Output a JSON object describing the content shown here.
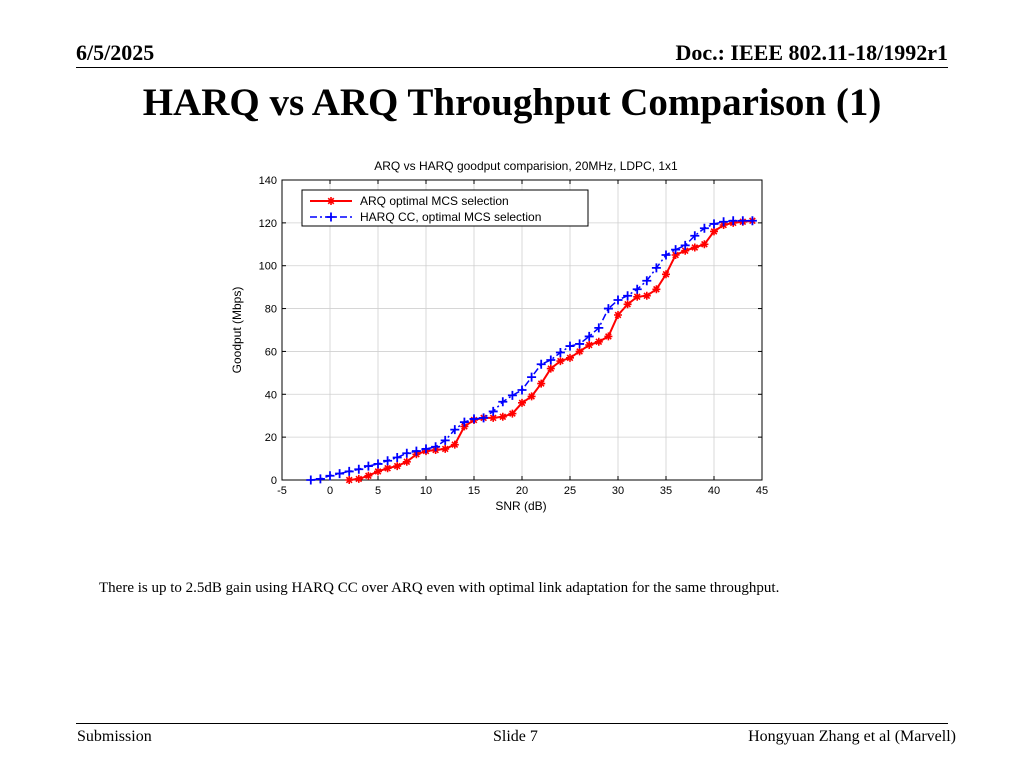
{
  "header": {
    "date": "6/5/2025",
    "doc_id": "Doc.: IEEE 802.11-18/1992r1"
  },
  "slide_title": "HARQ vs ARQ Throughput Comparison (1)",
  "caption": "There is up to 2.5dB gain using HARQ CC over ARQ even with optimal link adaptation for the same throughput.",
  "footer": {
    "left": "Submission",
    "center": "Slide 7",
    "right": "Hongyuan Zhang et al (Marvell)"
  },
  "colors": {
    "arq": "#ff0000",
    "harq": "#0000ff",
    "grid": "#d0d0d0"
  },
  "chart_data": {
    "type": "line",
    "title": "ARQ vs HARQ goodput comparision, 20MHz, LDPC, 1x1",
    "xlabel": "SNR (dB)",
    "ylabel": "Goodput (Mbps)",
    "xlim": [
      -5,
      45
    ],
    "ylim": [
      0,
      140
    ],
    "xticks": [
      -5,
      0,
      5,
      10,
      15,
      20,
      25,
      30,
      35,
      40,
      45
    ],
    "yticks": [
      0,
      20,
      40,
      60,
      80,
      100,
      120,
      140
    ],
    "grid": true,
    "legend": "top-left",
    "series": [
      {
        "name": "ARQ optimal MCS selection",
        "style": "solid",
        "marker": "*",
        "x": [
          2,
          3,
          4,
          5,
          6,
          7,
          8,
          9,
          10,
          11,
          12,
          13,
          14,
          15,
          16,
          17,
          18,
          19,
          20,
          21,
          22,
          23,
          24,
          25,
          26,
          27,
          28,
          29,
          30,
          31,
          32,
          33,
          34,
          35,
          36,
          37,
          38,
          39,
          40,
          41,
          42,
          43,
          44
        ],
        "y": [
          0,
          0.5,
          2,
          4,
          5.5,
          6.5,
          8.5,
          12,
          13.5,
          14,
          14.5,
          16.5,
          25,
          28,
          29,
          29,
          29.5,
          31,
          36,
          39,
          45,
          52,
          55.5,
          57,
          60,
          63,
          64.5,
          67,
          77,
          82,
          85.5,
          86,
          89,
          96,
          105,
          107,
          108.5,
          110,
          116,
          119,
          120,
          120.5,
          121
        ]
      },
      {
        "name": "HARQ CC, optimal MCS selection",
        "style": "dashdot",
        "marker": "+",
        "x": [
          -2,
          -1,
          0,
          1,
          2,
          3,
          4,
          5,
          6,
          7,
          8,
          9,
          10,
          11,
          12,
          13,
          14,
          15,
          16,
          17,
          18,
          19,
          20,
          21,
          22,
          23,
          24,
          25,
          26,
          27,
          28,
          29,
          30,
          31,
          32,
          33,
          34,
          35,
          36,
          37,
          38,
          39,
          40,
          41,
          42,
          43,
          44
        ],
        "y": [
          0,
          0.5,
          2,
          3,
          4,
          5,
          6.5,
          7.5,
          9,
          10.5,
          12.5,
          13.5,
          14.5,
          15.5,
          18.5,
          23.5,
          27,
          28.5,
          29,
          32,
          36.5,
          39.5,
          42,
          48,
          54,
          56,
          59.5,
          62.5,
          63.5,
          67,
          71,
          80,
          84,
          86,
          89,
          93,
          99,
          105,
          107.5,
          109.5,
          114,
          117.5,
          119.5,
          120.5,
          121,
          121,
          121
        ]
      }
    ]
  }
}
